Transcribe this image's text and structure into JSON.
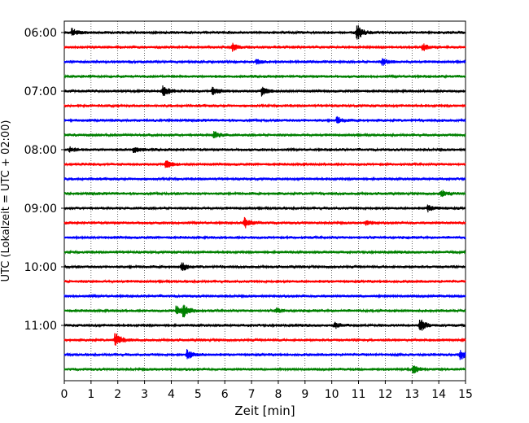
{
  "chart_data": {
    "type": "line",
    "subtype": "helicorder",
    "xlabel": "Zeit  [min]",
    "ylabel": "UTC (Lokalzeit = UTC + 02:00)",
    "xlim": [
      0,
      15
    ],
    "x_ticks": [
      "0",
      "1",
      "2",
      "3",
      "4",
      "5",
      "6",
      "7",
      "8",
      "9",
      "10",
      "11",
      "12",
      "13",
      "14",
      "15"
    ],
    "y_tick_labels": [
      "06:00",
      "07:00",
      "08:00",
      "09:00",
      "10:00",
      "11:00"
    ],
    "grid": "vertical dotted at each minute",
    "trace_colors": [
      "#000000",
      "#ff0000",
      "#0000ff",
      "#008000"
    ],
    "traces": [
      {
        "start": "06:00",
        "events": [
          [
            0.3,
            0.5
          ],
          [
            10.95,
            1.0
          ]
        ]
      },
      {
        "start": "06:15",
        "events": [
          [
            6.3,
            0.45
          ],
          [
            13.4,
            0.45
          ]
        ]
      },
      {
        "start": "06:30",
        "events": [
          [
            7.2,
            0.3
          ],
          [
            11.9,
            0.4
          ]
        ]
      },
      {
        "start": "06:45",
        "events": []
      },
      {
        "start": "07:00",
        "events": [
          [
            3.7,
            0.8
          ],
          [
            5.55,
            0.5
          ],
          [
            7.4,
            0.6
          ]
        ]
      },
      {
        "start": "07:15",
        "events": []
      },
      {
        "start": "07:30",
        "events": [
          [
            10.2,
            0.4
          ]
        ]
      },
      {
        "start": "07:45",
        "events": [
          [
            5.6,
            0.5
          ]
        ]
      },
      {
        "start": "08:00",
        "events": [
          [
            0.2,
            0.3
          ],
          [
            2.6,
            0.35
          ]
        ]
      },
      {
        "start": "08:15",
        "events": [
          [
            3.8,
            0.6
          ]
        ]
      },
      {
        "start": "08:30",
        "events": []
      },
      {
        "start": "08:45",
        "events": [
          [
            14.1,
            0.45
          ]
        ]
      },
      {
        "start": "09:00",
        "events": [
          [
            13.6,
            0.4
          ]
        ]
      },
      {
        "start": "09:15",
        "events": [
          [
            6.75,
            0.7
          ],
          [
            11.3,
            0.3
          ]
        ]
      },
      {
        "start": "09:30",
        "events": []
      },
      {
        "start": "09:45",
        "events": []
      },
      {
        "start": "10:00",
        "events": [
          [
            4.4,
            0.55
          ]
        ]
      },
      {
        "start": "10:15",
        "events": []
      },
      {
        "start": "10:30",
        "events": []
      },
      {
        "start": "10:45",
        "events": [
          [
            4.2,
            0.6
          ],
          [
            4.45,
            0.8
          ],
          [
            7.95,
            0.3
          ]
        ]
      },
      {
        "start": "11:00",
        "events": [
          [
            10.1,
            0.4
          ],
          [
            13.3,
            0.9
          ]
        ]
      },
      {
        "start": "11:15",
        "events": [
          [
            1.9,
            1.0
          ]
        ]
      },
      {
        "start": "11:30",
        "events": [
          [
            4.6,
            0.6
          ],
          [
            14.8,
            0.6
          ]
        ]
      },
      {
        "start": "11:45",
        "events": [
          [
            13.05,
            0.5
          ]
        ]
      }
    ]
  }
}
